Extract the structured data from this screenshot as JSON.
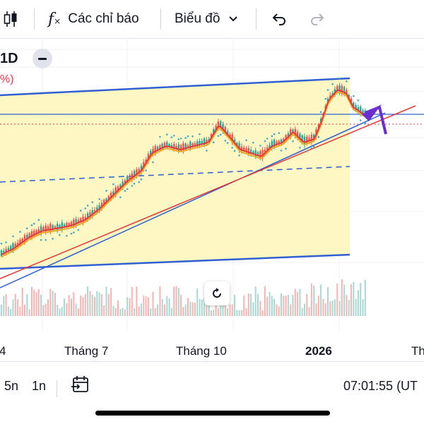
{
  "toolbar": {
    "candles_icon": "candlestick-icon",
    "indicators_label": "Các chỉ báo",
    "chart_type_label": "Biểu đồ",
    "undo_icon": "undo-icon",
    "redo_icon": "redo-icon"
  },
  "legend": {
    "timeframe": "1D",
    "change_fragment": "%)"
  },
  "xaxis": {
    "labels": [
      "Tháng 7",
      "Tháng 10",
      "2026",
      "Th"
    ]
  },
  "bottom": {
    "ranges": [
      "5n",
      "1n"
    ],
    "time": "07:01:55 (UT"
  },
  "colors": {
    "channel_fill": "#fdf7c3",
    "channel_line": "#2f5fd1",
    "trend_red": "#e53935",
    "candle_up": "#26a69a",
    "candle_down": "#ef5350",
    "ma_orange": "#f5a623",
    "arrow_purple": "#6a2fd1"
  }
}
